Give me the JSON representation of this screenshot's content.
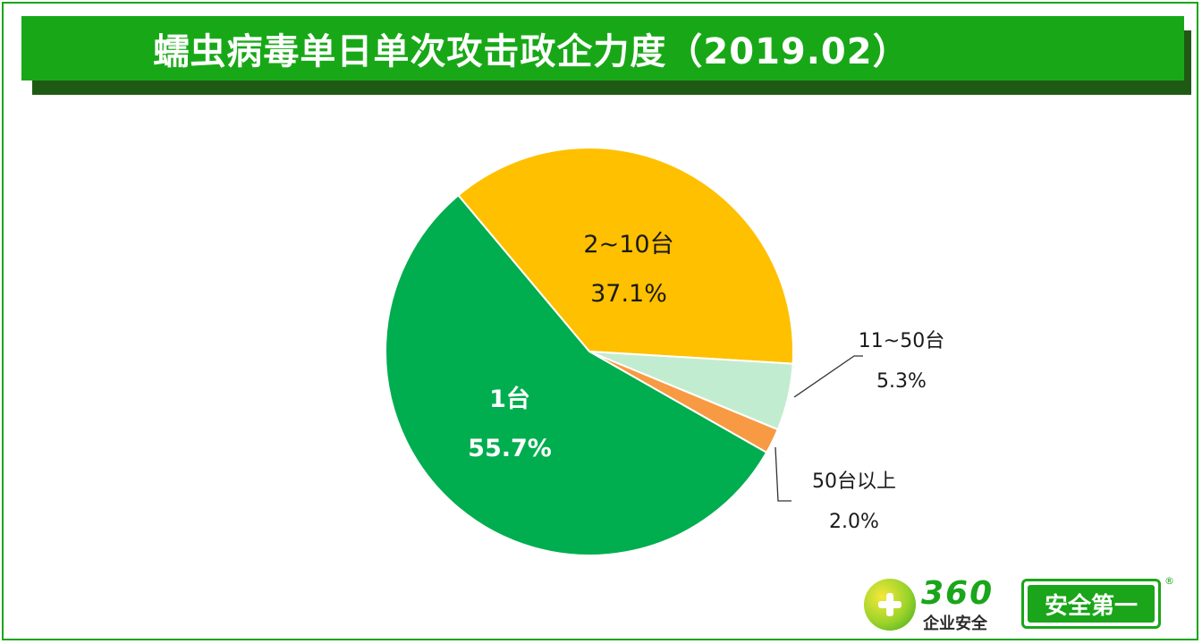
{
  "banner": {
    "title": "蠕虫病毒单日单次攻击政企力度（2019.02）"
  },
  "chart_data": {
    "type": "pie",
    "title": "蠕虫病毒单日单次攻击政企力度（2019.02）",
    "slices": [
      {
        "label": "2~10台",
        "value": 37.1,
        "value_label": "37.1%",
        "color": "#ffc000",
        "label_color": "#1a1a1a"
      },
      {
        "label": "11~50台",
        "value": 5.3,
        "value_label": "5.3%",
        "color": "#c2ecd0",
        "label_color": "#1a1a1a"
      },
      {
        "label": "50台以上",
        "value": 2.0,
        "value_label": "2.0%",
        "color": "#f79a43",
        "label_color": "#1a1a1a"
      },
      {
        "label": "1台",
        "value": 55.7,
        "value_label": "55.7%",
        "color": "#00ad4f",
        "label_color": "#ffffff"
      }
    ],
    "start_angle_deg": 230.0,
    "direction": "clockwise",
    "legend": "none"
  },
  "logo": {
    "number": "360",
    "subtitle": "企业安全",
    "badge": "安全第一",
    "registered": "®"
  }
}
